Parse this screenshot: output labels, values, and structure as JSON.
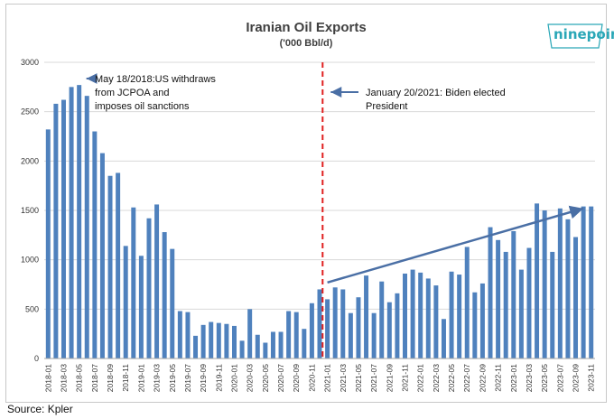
{
  "source": "Source: Kpler",
  "logo_text": "ninepoint",
  "chart_data": {
    "type": "bar",
    "title": "Iranian Oil Exports",
    "subtitle": "('000 Bbl/d)",
    "xlabel": "",
    "ylabel": "",
    "ylim": [
      0,
      3000
    ],
    "yticks": [
      0,
      500,
      1000,
      1500,
      2000,
      2500,
      3000
    ],
    "grid": true,
    "bar_color": "#4f81bd",
    "categories": [
      "2018-01",
      "2018-02",
      "2018-03",
      "2018-04",
      "2018-05",
      "2018-06",
      "2018-07",
      "2018-08",
      "2018-09",
      "2018-10",
      "2018-11",
      "2018-12",
      "2019-01",
      "2019-02",
      "2019-03",
      "2019-04",
      "2019-05",
      "2019-06",
      "2019-07",
      "2019-08",
      "2019-09",
      "2019-10",
      "2019-11",
      "2019-12",
      "2020-01",
      "2020-02",
      "2020-03",
      "2020-04",
      "2020-05",
      "2020-06",
      "2020-07",
      "2020-08",
      "2020-09",
      "2020-10",
      "2020-11",
      "2020-12",
      "2021-01",
      "2021-02",
      "2021-03",
      "2021-04",
      "2021-05",
      "2021-06",
      "2021-07",
      "2021-08",
      "2021-09",
      "2021-10",
      "2021-11",
      "2021-12",
      "2022-01",
      "2022-02",
      "2022-03",
      "2022-04",
      "2022-05",
      "2022-06",
      "2022-07",
      "2022-08",
      "2022-09",
      "2022-10",
      "2022-11",
      "2022-12",
      "2023-01",
      "2023-02",
      "2023-03",
      "2023-04",
      "2023-05",
      "2023-06",
      "2023-07",
      "2023-08",
      "2023-09",
      "2023-10",
      "2023-11"
    ],
    "values": [
      2320,
      2580,
      2620,
      2750,
      2770,
      2660,
      2300,
      2080,
      1850,
      1880,
      1140,
      1530,
      1040,
      1420,
      1560,
      1280,
      1110,
      480,
      470,
      230,
      340,
      370,
      360,
      350,
      330,
      180,
      500,
      240,
      160,
      270,
      270,
      480,
      470,
      300,
      560,
      700,
      600,
      720,
      700,
      460,
      620,
      840,
      460,
      780,
      570,
      660,
      860,
      900,
      870,
      810,
      740,
      400,
      880,
      850,
      1130,
      670,
      760,
      1330,
      1200,
      1080,
      1290,
      900,
      1120,
      1570,
      1500,
      1080,
      1520,
      1410,
      1230,
      1540,
      1540
    ],
    "xtick_labels": [
      "2018-01",
      "2018-03",
      "2018-05",
      "2018-07",
      "2018-09",
      "2018-11",
      "2019-01",
      "2019-03",
      "2019-05",
      "2019-07",
      "2019-09",
      "2019-11",
      "2020-01",
      "2020-03",
      "2020-05",
      "2020-07",
      "2020-09",
      "2020-11",
      "2021-01",
      "2021-03",
      "2021-05",
      "2021-07",
      "2021-09",
      "2021-11",
      "2022-01",
      "2022-03",
      "2022-05",
      "2022-07",
      "2022-09",
      "2022-11",
      "2023-01",
      "2023-03",
      "2023-05",
      "2023-07",
      "2023-09",
      "2023-11"
    ],
    "annotations": [
      {
        "text_lines": [
          "May 18/2018:US withdraws",
          "from JCPOA and",
          "imposes oil sanctions"
        ],
        "points_to": "2018-05"
      },
      {
        "text_lines": [
          "January 20/2021: Biden elected",
          "President"
        ],
        "points_to": "2021-01"
      }
    ],
    "event_line": {
      "at": "2021-01",
      "color": "#e02020",
      "style": "dashed"
    },
    "trend_arrow": {
      "from": {
        "x": "2021-01",
        "y": 770
      },
      "to": {
        "x": "2023-10",
        "y": 1520
      },
      "color": "#4a6fa5"
    }
  }
}
